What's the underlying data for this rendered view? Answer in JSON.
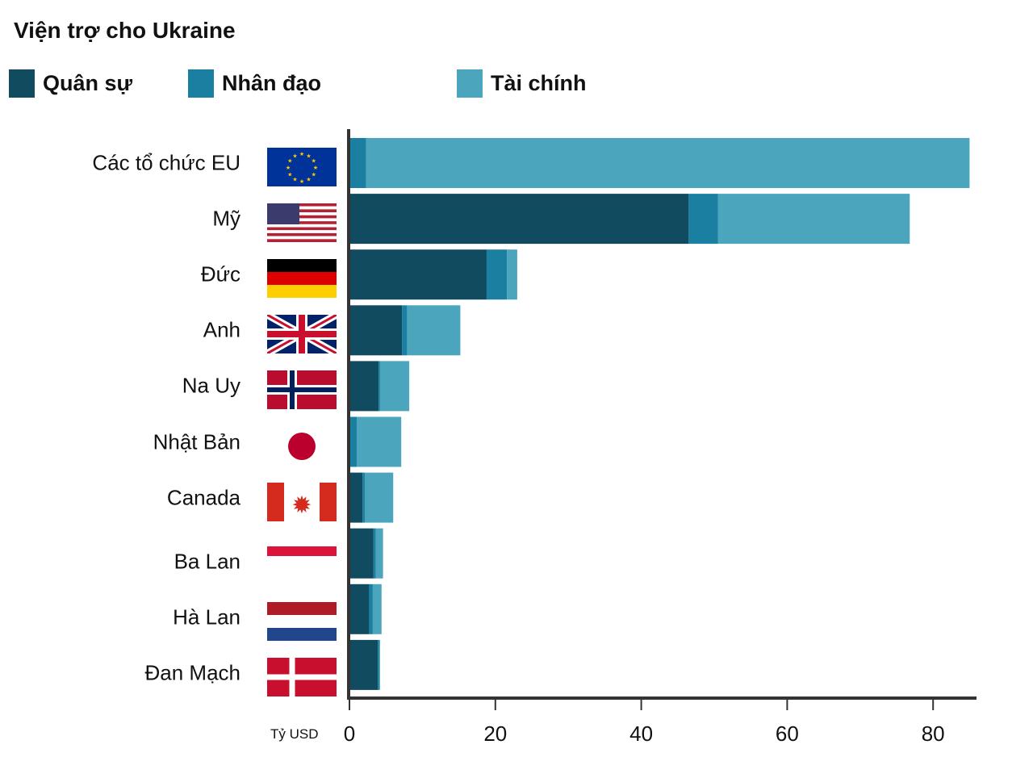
{
  "chart_data": {
    "type": "bar",
    "orientation": "horizontal",
    "stacked": true,
    "title": "Viện trợ cho Ukraine",
    "xlabel": "Tỷ USD",
    "ylabel": "",
    "xlim": [
      0,
      85
    ],
    "xticks": [
      0,
      20,
      40,
      60,
      80
    ],
    "grid": false,
    "legend_position": "top",
    "categories": [
      "Các tổ chức EU",
      "Mỹ",
      "Đức",
      "Anh",
      "Na Uy",
      "Nhật Bản",
      "Canada",
      "Ba Lan",
      "Hà Lan",
      "Đan Mạch"
    ],
    "flags": [
      "eu-flag",
      "usa-flag",
      "germany-flag",
      "uk-flag",
      "norway-flag",
      "japan-flag",
      "canada-flag",
      "poland-flag",
      "netherlands-flag",
      "denmark-flag"
    ],
    "series": [
      {
        "name": "Quân sự",
        "color": "#114b5f",
        "values": [
          0,
          46.5,
          18.8,
          7.2,
          4.0,
          0,
          1.8,
          3.3,
          2.7,
          3.9
        ]
      },
      {
        "name": "Nhân đạo",
        "color": "#1a7fa0",
        "values": [
          2.3,
          4.0,
          2.8,
          0.7,
          0.2,
          1.0,
          0.3,
          0.3,
          0.5,
          0.2
        ]
      },
      {
        "name": "Tài chính",
        "color": "#4ba6bd",
        "values": [
          82.7,
          26.3,
          1.4,
          7.3,
          4.0,
          6.1,
          3.9,
          1.0,
          1.2,
          0.1
        ]
      }
    ]
  }
}
